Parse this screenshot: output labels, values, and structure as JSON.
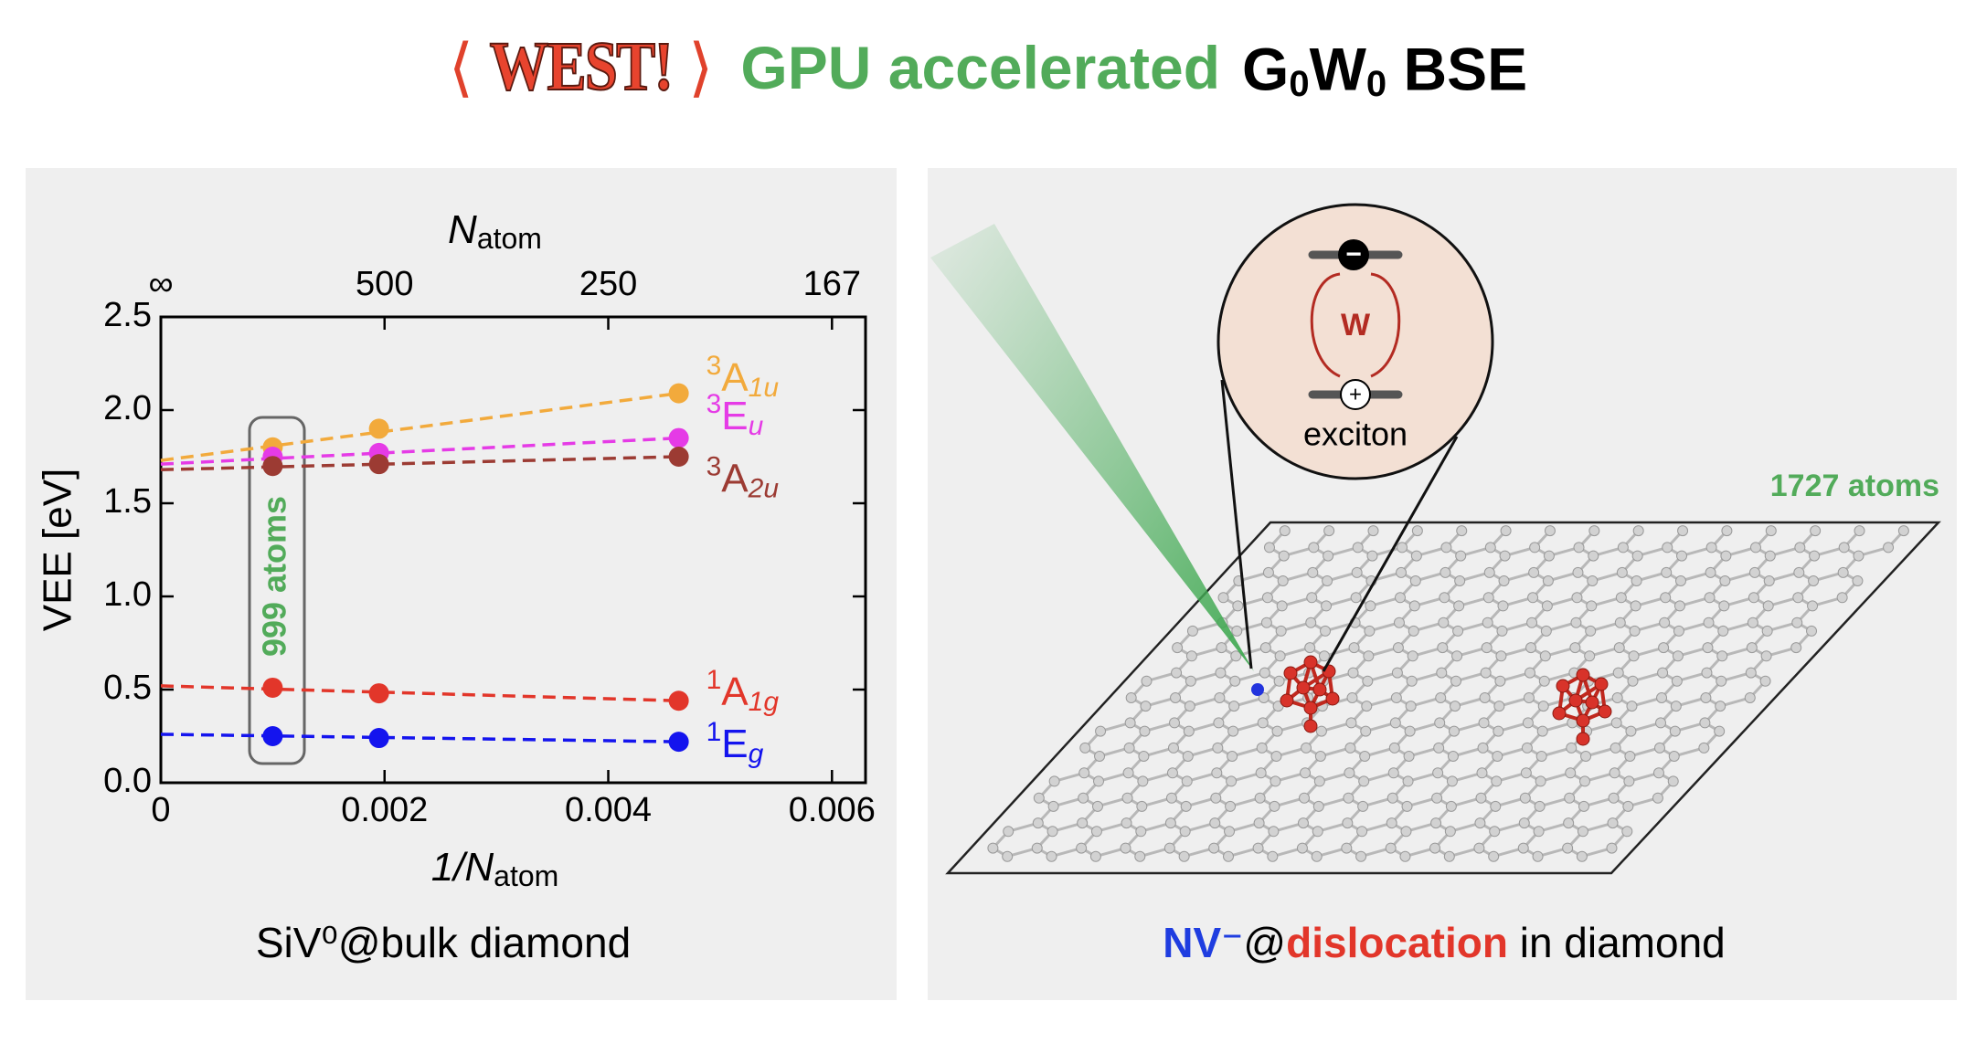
{
  "header": {
    "logo": [
      "⟨",
      "WEST!",
      "⟩"
    ],
    "subtitle": "GPU accelerated",
    "method": [
      "G",
      "0",
      "W",
      "0",
      " BSE"
    ]
  },
  "chart_data": {
    "type": "line",
    "ylabel": "VEE [eV]",
    "xlabel": {
      "main": "1/N",
      "sub": "atom"
    },
    "x2label": {
      "main": "N",
      "sub": "atom"
    },
    "x": [
      0.001,
      0.00195,
      0.00463
    ],
    "xlim": [
      0,
      0.0063
    ],
    "ylim": [
      0,
      2.5
    ],
    "xticks": [
      0,
      0.002,
      0.004,
      0.006
    ],
    "x2ticks": [
      {
        "value": 0,
        "label": "∞"
      },
      {
        "value": 0.002,
        "label": "500"
      },
      {
        "value": 0.004,
        "label": "250"
      },
      {
        "value": 0.006,
        "label": "167"
      }
    ],
    "yticks": [
      {
        "value": 0,
        "label": "0.0"
      },
      0.5,
      {
        "value": 1,
        "label": "1.0"
      },
      1.5,
      {
        "value": 2,
        "label": "2.0"
      },
      2.5
    ],
    "series": [
      {
        "name": "A",
        "name_sup": "3",
        "name_sub": "1u",
        "color": "#f2aa3c",
        "intercept": 1.73,
        "values": [
          1.8,
          1.9,
          2.09
        ]
      },
      {
        "name": "E",
        "name_sup": "3",
        "name_sub": "u",
        "color": "#e53be6",
        "intercept": 1.71,
        "values": [
          1.75,
          1.77,
          1.85
        ]
      },
      {
        "name": "A",
        "name_sup": "3",
        "name_sub": "2u",
        "color": "#9c3b33",
        "intercept": 1.68,
        "values": [
          1.7,
          1.71,
          1.75
        ]
      },
      {
        "name": "A",
        "name_sup": "1",
        "name_sub": "1g",
        "color": "#e2362a",
        "intercept": 0.52,
        "values": [
          0.51,
          0.48,
          0.44
        ]
      },
      {
        "name": "E",
        "name_sup": "1",
        "name_sub": "g",
        "color": "#1414ee",
        "intercept": 0.26,
        "values": [
          0.25,
          0.24,
          0.22
        ]
      }
    ],
    "annotation": "999 atoms"
  },
  "left_caption": "SiV⁰@bulk diamond",
  "right_panel": {
    "atoms_label": "1727 atoms",
    "inset": {
      "minus": "−",
      "plus": "+",
      "interaction": "W",
      "label": "exciton"
    },
    "caption": [
      "NV⁻",
      "@",
      "dislocation",
      " in diamond"
    ]
  }
}
